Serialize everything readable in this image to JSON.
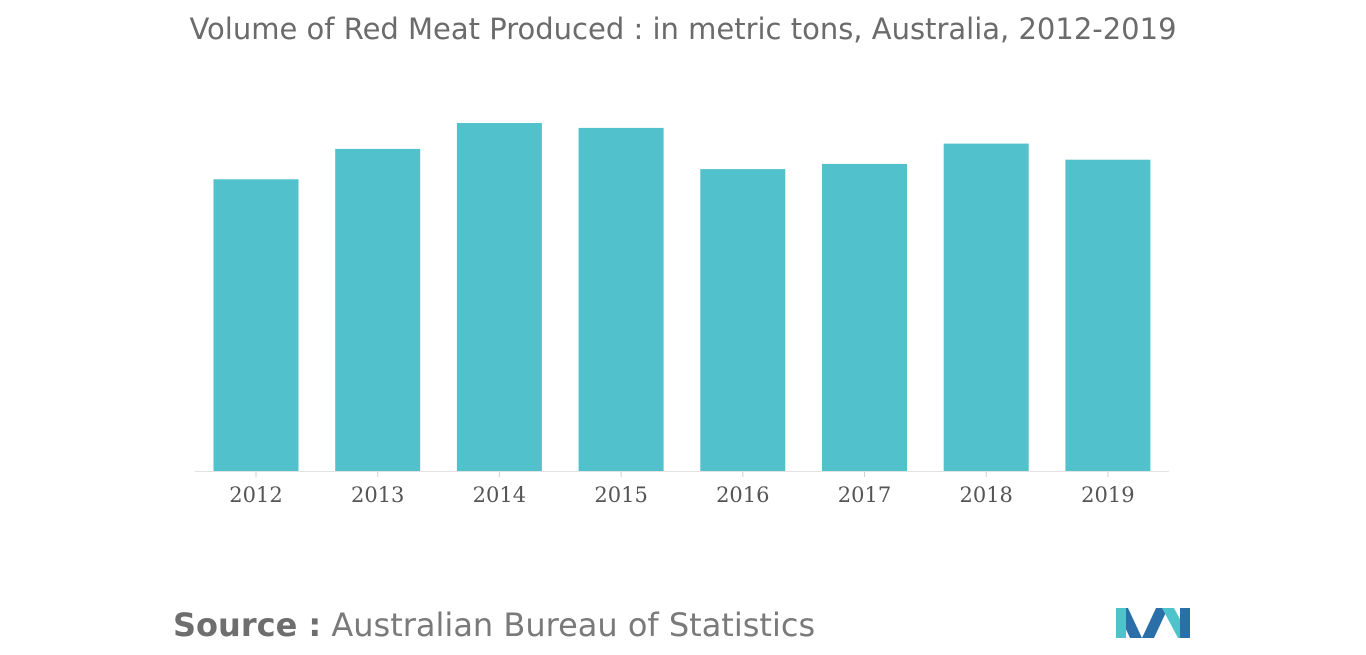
{
  "title": "Volume of Red Meat Produced : in metric tons, Australia, 2012-2019",
  "source": {
    "label": "Source :",
    "text": "Australian Bureau of Statistics"
  },
  "colors": {
    "bar": "#51c2cb",
    "logo_dark": "#2a6fa8",
    "logo_light": "#4fc3cc"
  },
  "logo_icon": "mordor-intelligence-logo",
  "chart_data": {
    "type": "bar",
    "title": "Volume of Red Meat Produced : in metric tons, Australia, 2012-2019",
    "xlabel": "",
    "ylabel": "",
    "categories": [
      "2012",
      "2013",
      "2014",
      "2015",
      "2016",
      "2017",
      "2018",
      "2019"
    ],
    "values": [
      83.5,
      92.2,
      99.6,
      98.2,
      86.4,
      87.9,
      93.7,
      89.1
    ],
    "ylim": [
      0,
      100
    ],
    "grid": false,
    "legend": "none"
  }
}
